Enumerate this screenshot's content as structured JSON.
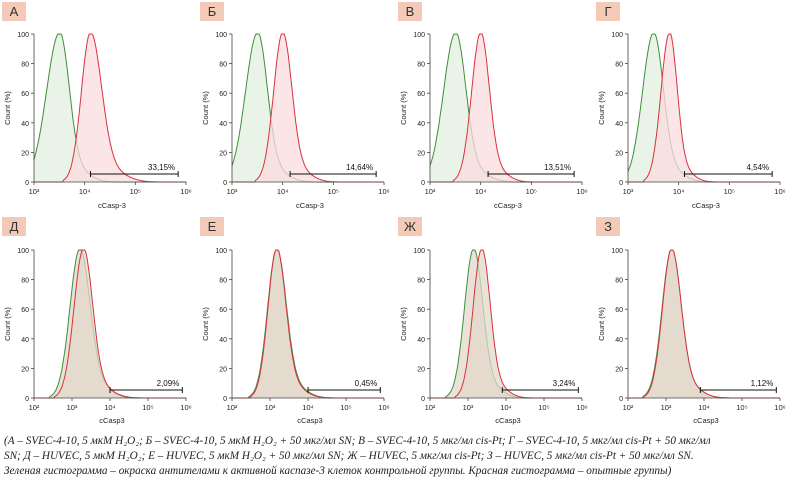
{
  "chart_data": [
    {
      "type": "area",
      "panel_label": "А",
      "ylabel": "Count (%)",
      "xlabel": "cCasp-3",
      "xaxis": "log",
      "xlim": [
        1000,
        1000000
      ],
      "xticks": [
        "10³",
        "10⁴",
        "10⁵",
        "10⁶"
      ],
      "yticks": [
        "0",
        "20",
        "40",
        "60",
        "80",
        "100"
      ],
      "ylim": [
        0,
        100
      ],
      "gate_percent": "33,15%",
      "gate_range": [
        13000,
        700000
      ],
      "series": [
        {
          "role": "control",
          "color": "#3e8f3a",
          "fill": "#e3efdf",
          "peak_x": 3200,
          "width_left": 0.26,
          "width_right": 0.19
        },
        {
          "role": "experimental",
          "color": "#d9323c",
          "fill": "#f9dcde",
          "peak_x": 13000,
          "width_left": 0.18,
          "width_right": 0.22
        }
      ]
    },
    {
      "type": "area",
      "panel_label": "Б",
      "ylabel": "Count (%)",
      "xlabel": "cCasp-3",
      "xaxis": "log",
      "xlim": [
        1000,
        1000000
      ],
      "xticks": [
        "10³",
        "10⁴",
        "10⁵",
        "10⁶"
      ],
      "yticks": [
        "0",
        "20",
        "40",
        "60",
        "80",
        "100"
      ],
      "ylim": [
        0,
        100
      ],
      "gate_percent": "14,64%",
      "gate_range": [
        14000,
        700000
      ],
      "series": [
        {
          "role": "control",
          "color": "#3e8f3a",
          "fill": "#e3efdf",
          "peak_x": 3200,
          "width_left": 0.24,
          "width_right": 0.19
        },
        {
          "role": "experimental",
          "color": "#d9323c",
          "fill": "#f9dcde",
          "peak_x": 10000,
          "width_left": 0.18,
          "width_right": 0.18
        }
      ]
    },
    {
      "type": "area",
      "panel_label": "В",
      "ylabel": "Count (%)",
      "xlabel": "cCasp-3",
      "xaxis": "log",
      "xlim": [
        1000,
        1000000
      ],
      "xticks": [
        "10³",
        "10⁴",
        "10⁵",
        "10⁶"
      ],
      "yticks": [
        "0",
        "20",
        "40",
        "60",
        "80",
        "100"
      ],
      "ylim": [
        0,
        100
      ],
      "gate_percent": "13,51%",
      "gate_range": [
        14000,
        700000
      ],
      "series": [
        {
          "role": "control",
          "color": "#3e8f3a",
          "fill": "#e3efdf",
          "peak_x": 3200,
          "width_left": 0.24,
          "width_right": 0.2
        },
        {
          "role": "experimental",
          "color": "#d9323c",
          "fill": "#f9dcde",
          "peak_x": 10000,
          "width_left": 0.18,
          "width_right": 0.17
        }
      ]
    },
    {
      "type": "area",
      "panel_label": "Г",
      "ylabel": "Count (%)",
      "xlabel": "cCasp-3",
      "xaxis": "log",
      "xlim": [
        1000,
        1000000
      ],
      "xticks": [
        "10³",
        "10⁴",
        "10⁵",
        "10⁶"
      ],
      "yticks": [
        "0",
        "20",
        "40",
        "60",
        "80",
        "100"
      ],
      "ylim": [
        0,
        100
      ],
      "gate_percent": "4,54%",
      "gate_range": [
        13000,
        700000
      ],
      "series": [
        {
          "role": "control",
          "color": "#3e8f3a",
          "fill": "#e3efdf",
          "peak_x": 3200,
          "width_left": 0.22,
          "width_right": 0.19
        },
        {
          "role": "experimental",
          "color": "#d9323c",
          "fill": "#f9dcde",
          "peak_x": 6600,
          "width_left": 0.17,
          "width_right": 0.15
        }
      ]
    },
    {
      "type": "area",
      "panel_label": "Д",
      "ylabel": "Count (%)",
      "xlabel": "cCasp3",
      "xaxis": "log",
      "xlim": [
        100,
        1000000
      ],
      "xticks": [
        "10²",
        "10³",
        "10⁴",
        "10⁵",
        "10⁶"
      ],
      "yticks": [
        "0",
        "20",
        "40",
        "60",
        "80",
        "100"
      ],
      "ylim": [
        0,
        100
      ],
      "gate_percent": "2,09%",
      "gate_range": [
        10000,
        800000
      ],
      "series": [
        {
          "role": "control",
          "color": "#3e8f3a",
          "fill": "#e2d8cb",
          "peak_x": 1600,
          "width_left": 0.26,
          "width_right": 0.27
        },
        {
          "role": "experimental",
          "color": "#d9323c",
          "fill": "#e2d8cb",
          "peak_x": 2000,
          "width_left": 0.25,
          "width_right": 0.24
        }
      ]
    },
    {
      "type": "area",
      "panel_label": "Е",
      "ylabel": "Count (%)",
      "xlabel": "cCasp3",
      "xaxis": "log",
      "xlim": [
        100,
        1000000
      ],
      "xticks": [
        "10²",
        "10³",
        "10⁴",
        "10⁵",
        "10⁶"
      ],
      "yticks": [
        "0",
        "20",
        "40",
        "60",
        "80",
        "100"
      ],
      "ylim": [
        0,
        100
      ],
      "gate_percent": "0,45%",
      "gate_range": [
        10000,
        800000
      ],
      "series": [
        {
          "role": "control",
          "color": "#3e8f3a",
          "fill": "#e2d8cb",
          "peak_x": 1500,
          "width_left": 0.24,
          "width_right": 0.25
        },
        {
          "role": "experimental",
          "color": "#d9323c",
          "fill": "#e2d8cb",
          "peak_x": 1500,
          "width_left": 0.23,
          "width_right": 0.24
        }
      ]
    },
    {
      "type": "area",
      "panel_label": "Ж",
      "ylabel": "Count (%)",
      "xlabel": "cCasp3",
      "xaxis": "log",
      "xlim": [
        100,
        1000000
      ],
      "xticks": [
        "10²",
        "10³",
        "10⁴",
        "10⁵",
        "10⁶"
      ],
      "yticks": [
        "0",
        "20",
        "40",
        "60",
        "80",
        "100"
      ],
      "ylim": [
        0,
        100
      ],
      "gate_percent": "3,24%",
      "gate_range": [
        8000,
        800000
      ],
      "series": [
        {
          "role": "control",
          "color": "#3e8f3a",
          "fill": "#e2d8cb",
          "peak_x": 1400,
          "width_left": 0.24,
          "width_right": 0.24
        },
        {
          "role": "experimental",
          "color": "#d9323c",
          "fill": "#e2d8cb",
          "peak_x": 2300,
          "width_left": 0.23,
          "width_right": 0.22
        }
      ]
    },
    {
      "type": "area",
      "panel_label": "З",
      "ylabel": "Count (%)",
      "xlabel": "cCasp3",
      "xaxis": "log",
      "xlim": [
        100,
        1000000
      ],
      "xticks": [
        "10²",
        "10³",
        "10⁴",
        "10⁵",
        "10⁶"
      ],
      "yticks": [
        "0",
        "20",
        "40",
        "60",
        "80",
        "100"
      ],
      "ylim": [
        0,
        100
      ],
      "gate_percent": "1,12%",
      "gate_range": [
        8000,
        800000
      ],
      "series": [
        {
          "role": "control",
          "color": "#3e8f3a",
          "fill": "#e2d8cb",
          "peak_x": 1400,
          "width_left": 0.25,
          "width_right": 0.25
        },
        {
          "role": "experimental",
          "color": "#d9323c",
          "fill": "#e2d8cb",
          "peak_x": 1400,
          "width_left": 0.24,
          "width_right": 0.25
        }
      ]
    }
  ],
  "label_box_color": "#f3c9b8",
  "caption": [
    "(А – SVEC-4-10, 5 мкМ H₂O₂; Б – SVEC-4-10, 5 мкМ H₂O₂ + 50 мкг/мл SN; В – SVEC-4-10, 5 мкг/мл cis-Pt; Г – SVEC-4-10, 5 мкг/мл cis-Pt + 50 мкг/мл",
    "SN; Д – HUVEC, 5 мкМ H₂O₂; Е – HUVEC, 5 мкМ H₂O₂ + 50 мкг/мл SN; Ж – HUVEC, 5 мкг/мл cis-Pt; З – HUVEC, 5 мкг/мл cis-Pt + 50 мкг/мл SN.",
    "Зеленая гистограмма – окраска антителами к активной каспазе-3 клеток контрольной группы. Красная гистограмма – опытные группы)"
  ]
}
